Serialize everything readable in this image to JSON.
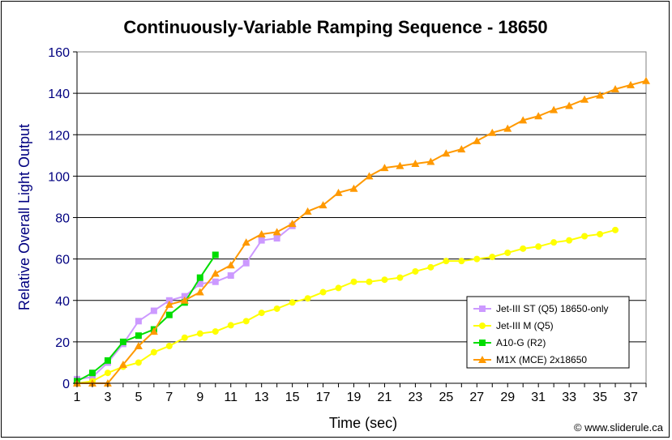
{
  "chart_data": {
    "type": "line",
    "title": "Continuously-Variable Ramping Sequence - 18650",
    "xlabel": "Time (sec)",
    "ylabel": "Relative Overall Light Output",
    "credit": "© www.sliderule.ca",
    "xlim": [
      1,
      38
    ],
    "ylim": [
      0,
      160
    ],
    "xticks": [
      1,
      3,
      5,
      7,
      9,
      11,
      13,
      15,
      17,
      19,
      21,
      23,
      25,
      27,
      29,
      31,
      33,
      35,
      37
    ],
    "yticks": [
      0,
      20,
      40,
      60,
      80,
      100,
      120,
      140,
      160
    ],
    "legend_position": "bottom-right",
    "series": [
      {
        "name": "Jet-III ST (Q5) 18650-only",
        "color": "#cc99ff",
        "marker": "square",
        "x": [
          1,
          2,
          3,
          4,
          5,
          6,
          7,
          8,
          9,
          10,
          11,
          12,
          13,
          14,
          15
        ],
        "y": [
          2,
          3,
          10,
          19,
          30,
          35,
          40,
          42,
          48,
          49,
          52,
          58,
          69,
          70,
          76
        ]
      },
      {
        "name": "Jet-III M (Q5)",
        "color": "#ffff00",
        "marker": "circle",
        "x": [
          1,
          2,
          3,
          4,
          5,
          6,
          7,
          8,
          9,
          10,
          11,
          12,
          13,
          14,
          15,
          16,
          17,
          18,
          19,
          20,
          21,
          22,
          23,
          24,
          25,
          26,
          27,
          28,
          29,
          30,
          31,
          32,
          33,
          34,
          35,
          36
        ],
        "y": [
          0,
          1,
          5,
          8,
          10,
          15,
          18,
          22,
          24,
          25,
          28,
          30,
          34,
          36,
          39,
          41,
          44,
          46,
          49,
          49,
          50,
          51,
          54,
          56,
          59,
          59,
          60,
          61,
          63,
          65,
          66,
          68,
          69,
          71,
          72,
          74
        ]
      },
      {
        "name": "A10-G (R2)",
        "color": "#00dd00",
        "marker": "square",
        "x": [
          1,
          2,
          3,
          4,
          5,
          6,
          7,
          8,
          9,
          10
        ],
        "y": [
          1,
          5,
          11,
          20,
          23,
          26,
          33,
          39,
          51,
          62
        ]
      },
      {
        "name": "M1X (MCE) 2x18650",
        "color": "#ff9900",
        "marker": "triangle",
        "x": [
          1,
          2,
          3,
          4,
          5,
          6,
          7,
          8,
          9,
          10,
          11,
          12,
          13,
          14,
          15,
          16,
          17,
          18,
          19,
          20,
          21,
          22,
          23,
          24,
          25,
          26,
          27,
          28,
          29,
          30,
          31,
          32,
          33,
          34,
          35,
          36,
          37,
          38
        ],
        "y": [
          0,
          0,
          0,
          9,
          18,
          25,
          38,
          40,
          44,
          53,
          57,
          68,
          72,
          73,
          77,
          83,
          86,
          92,
          94,
          100,
          104,
          105,
          106,
          107,
          111,
          113,
          117,
          121,
          123,
          127,
          129,
          132,
          134,
          137,
          139,
          142,
          144,
          146
        ]
      }
    ]
  }
}
